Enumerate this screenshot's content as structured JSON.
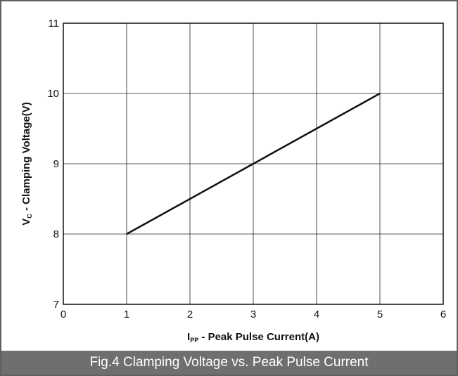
{
  "figure": {
    "caption": "Fig.4 Clamping Voltage vs. Peak Pulse Current",
    "caption_bg": "#6e6f71",
    "frame_border": "#5f6062"
  },
  "chart_data": {
    "type": "line",
    "title": "",
    "xlabel_parts": [
      {
        "text": "I",
        "sub": false
      },
      {
        "text": "PP",
        "sub": true
      },
      {
        "text": " - Peak Pulse Current(A)",
        "sub": false
      }
    ],
    "ylabel_parts": [
      {
        "text": "V",
        "sub": false
      },
      {
        "text": "C",
        "sub": true
      },
      {
        "text": " - Clamping Voltage(V)",
        "sub": false
      }
    ],
    "xlim": [
      0,
      6
    ],
    "ylim": [
      7,
      11
    ],
    "xticks": [
      0,
      1,
      2,
      3,
      4,
      5,
      6
    ],
    "yticks": [
      7,
      8,
      9,
      10,
      11
    ],
    "grid": true,
    "series": [
      {
        "x": [
          1,
          5
        ],
        "y": [
          8,
          10
        ],
        "color": "#111111"
      }
    ]
  }
}
